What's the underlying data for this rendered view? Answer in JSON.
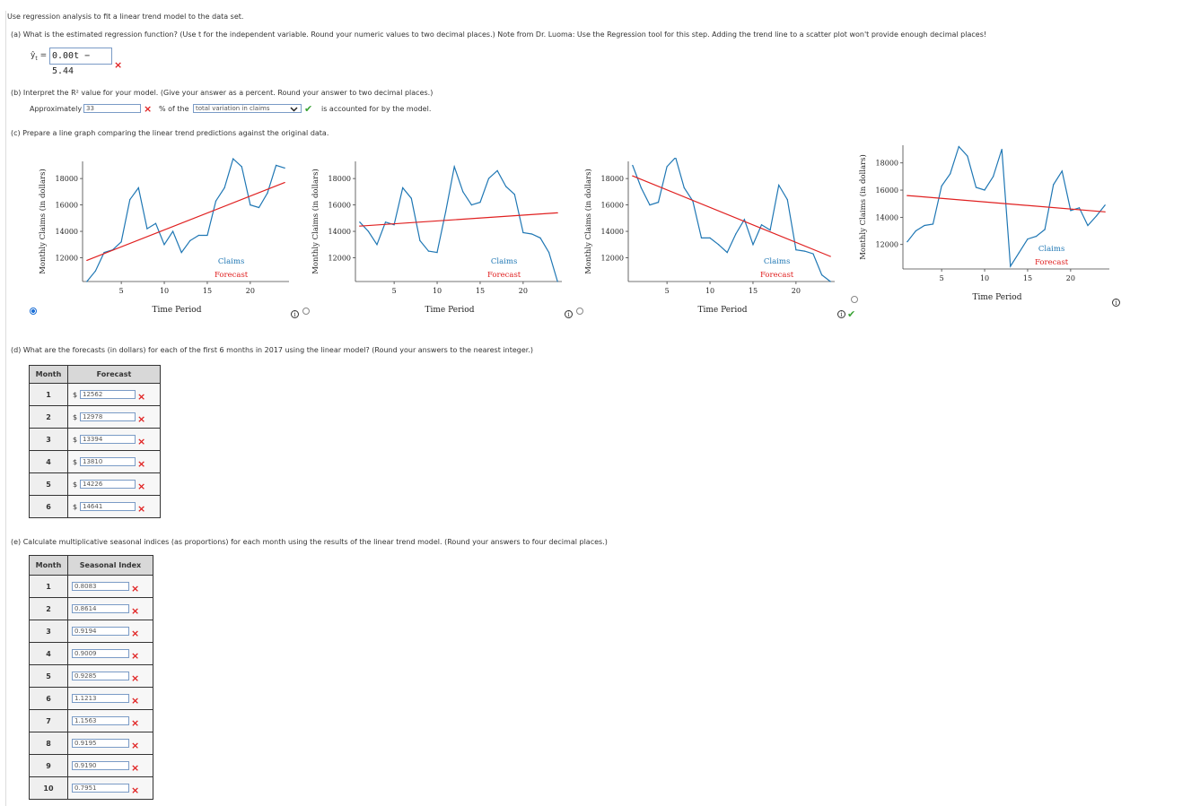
{
  "intro": "Use regression analysis to fit a linear trend model to the data set.",
  "part_a": {
    "question": "(a)  What is the estimated regression function? (Use t for the independent variable. Round your numeric values to two decimal places.) Note from Dr. Luoma: Use the Regression tool for this step. Adding the trend line to a scatter plot won't provide enough decimal places!",
    "lhs": "ŷ",
    "lhs_sub": "t",
    "equals": "=",
    "answer": "0.00t − 5.44",
    "status": "incorrect"
  },
  "part_b": {
    "question": "(b)  Interpret the R² value for your model. (Give your answer as a percent. Round your answer to two decimal places.)",
    "prefix": "Approximately",
    "value": "33",
    "value_status": "incorrect",
    "middle": "% of the",
    "select_value": "total variation in claims",
    "select_status": "correct",
    "suffix": "is accounted for by the model."
  },
  "part_c": {
    "question": "(c)  Prepare a line graph comparing the linear trend predictions against the original data.",
    "selected_option": 1,
    "correct_option": 4
  },
  "chart_data": [
    {
      "type": "line",
      "xlabel": "Time Period",
      "ylabel": "Monthly Claims (in dollars)",
      "xticks": [
        5,
        10,
        15,
        20
      ],
      "yticks": [
        12000,
        14000,
        16000,
        18000
      ],
      "xlim": [
        0.5,
        24.5
      ],
      "ylim": [
        10200,
        19300
      ],
      "legend": [
        "Claims",
        "Forecast"
      ],
      "series": [
        {
          "name": "Claims",
          "color": "#1f77b4",
          "x": [
            1,
            2,
            3,
            4,
            5,
            6,
            7,
            8,
            9,
            10,
            11,
            12,
            13,
            14,
            15,
            16,
            17,
            18,
            19,
            20,
            21,
            22,
            23,
            24
          ],
          "values": [
            10200,
            11000,
            12400,
            12600,
            13200,
            16400,
            17300,
            14200,
            14600,
            13000,
            14000,
            12400,
            13300,
            13700,
            13700,
            16300,
            17300,
            19500,
            18900,
            16000,
            15800,
            16900,
            19000,
            18800
          ]
        },
        {
          "name": "Forecast",
          "color": "#e02020",
          "x": [
            1,
            24
          ],
          "values": [
            11800,
            17700
          ]
        }
      ]
    },
    {
      "type": "line",
      "xlabel": "Time Period",
      "ylabel": "Monthly Claims (in dollars)",
      "xticks": [
        5,
        10,
        15,
        20
      ],
      "yticks": [
        12000,
        14000,
        16000,
        18000
      ],
      "xlim": [
        0.5,
        24.5
      ],
      "ylim": [
        10200,
        19300
      ],
      "legend": [
        "Claims",
        "Forecast"
      ],
      "series": [
        {
          "name": "Claims",
          "color": "#1f77b4",
          "x": [
            1,
            2,
            3,
            4,
            5,
            6,
            7,
            8,
            9,
            10,
            11,
            12,
            13,
            14,
            15,
            16,
            17,
            18,
            19,
            20,
            21,
            22,
            23,
            24
          ],
          "values": [
            14700,
            14000,
            13000,
            14700,
            14500,
            17300,
            16500,
            13300,
            12500,
            12400,
            15500,
            18900,
            17000,
            16000,
            16200,
            18000,
            18600,
            17400,
            16800,
            13900,
            13800,
            13500,
            12400,
            10200
          ]
        },
        {
          "name": "Forecast",
          "color": "#e02020",
          "x": [
            1,
            24
          ],
          "values": [
            14400,
            15400
          ]
        }
      ]
    },
    {
      "type": "line",
      "xlabel": "Time Period",
      "ylabel": "Monthly Claims (in dollars)",
      "xticks": [
        5,
        10,
        15,
        20
      ],
      "yticks": [
        12000,
        14000,
        16000,
        18000
      ],
      "xlim": [
        0.5,
        24.5
      ],
      "ylim": [
        10200,
        19300
      ],
      "legend": [
        "Claims",
        "Forecast"
      ],
      "series": [
        {
          "name": "Claims",
          "color": "#1f77b4",
          "x": [
            1,
            2,
            3,
            4,
            5,
            6,
            7,
            8,
            9,
            10,
            11,
            12,
            13,
            14,
            15,
            16,
            17,
            18,
            19,
            20,
            21,
            22,
            23,
            24
          ],
          "values": [
            19000,
            17300,
            16000,
            16200,
            18900,
            19600,
            17300,
            16300,
            13500,
            13500,
            13000,
            12400,
            13800,
            14900,
            13000,
            14500,
            14100,
            17500,
            16400,
            12600,
            12500,
            12300,
            10700,
            10200
          ]
        },
        {
          "name": "Forecast",
          "color": "#e02020",
          "x": [
            1,
            24
          ],
          "values": [
            18200,
            12100
          ]
        }
      ]
    },
    {
      "type": "line",
      "xlabel": "Time Period",
      "ylabel": "Monthly Claims (in dollars)",
      "xticks": [
        5,
        10,
        15,
        20
      ],
      "yticks": [
        12000,
        14000,
        16000,
        18000
      ],
      "xlim": [
        0.5,
        24.5
      ],
      "ylim": [
        10200,
        19300
      ],
      "legend": [
        "Claims",
        "Forecast"
      ],
      "series": [
        {
          "name": "Claims",
          "color": "#1f77b4",
          "x": [
            1,
            2,
            3,
            4,
            5,
            6,
            7,
            8,
            9,
            10,
            11,
            12,
            13,
            14,
            15,
            16,
            17,
            18,
            19,
            20,
            21,
            22,
            23,
            24
          ],
          "values": [
            12200,
            13000,
            13400,
            13500,
            16300,
            17200,
            19200,
            18500,
            16200,
            16000,
            17000,
            19000,
            10400,
            11400,
            12400,
            12600,
            13100,
            16400,
            17400,
            14500,
            14700,
            13400,
            14100,
            14900
          ]
        },
        {
          "name": "Forecast",
          "color": "#e02020",
          "x": [
            1,
            24
          ],
          "values": [
            15600,
            14400
          ]
        }
      ]
    }
  ],
  "part_d": {
    "question": "(d)  What are the forecasts (in dollars) for each of the first 6 months in 2017 using the linear model? (Round your answers to the nearest integer.)",
    "col_month": "Month",
    "col_value": "Forecast",
    "currency": "$",
    "rows": [
      {
        "month": "1",
        "value": "12562"
      },
      {
        "month": "2",
        "value": "12978"
      },
      {
        "month": "3",
        "value": "13394"
      },
      {
        "month": "4",
        "value": "13810"
      },
      {
        "month": "5",
        "value": "14226"
      },
      {
        "month": "6",
        "value": "14641"
      }
    ]
  },
  "part_e": {
    "question": "(e)  Calculate multiplicative seasonal indices (as proportions) for each month using the results of the linear trend model. (Round your answers to four decimal places.)",
    "col_month": "Month",
    "col_value": "Seasonal Index",
    "rows": [
      {
        "month": "1",
        "value": "0.8083"
      },
      {
        "month": "2",
        "value": "0.8614"
      },
      {
        "month": "3",
        "value": "0.9194"
      },
      {
        "month": "4",
        "value": "0.9009"
      },
      {
        "month": "5",
        "value": "0.9285"
      },
      {
        "month": "6",
        "value": "1.1213"
      },
      {
        "month": "7",
        "value": "1.1563"
      },
      {
        "month": "8",
        "value": "0.9195"
      },
      {
        "month": "9",
        "value": "0.9190"
      },
      {
        "month": "10",
        "value": "0.7951"
      }
    ]
  },
  "icons": {
    "incorrect": "×",
    "correct": "✔",
    "info": "i",
    "dropdown": "chevron-down"
  }
}
